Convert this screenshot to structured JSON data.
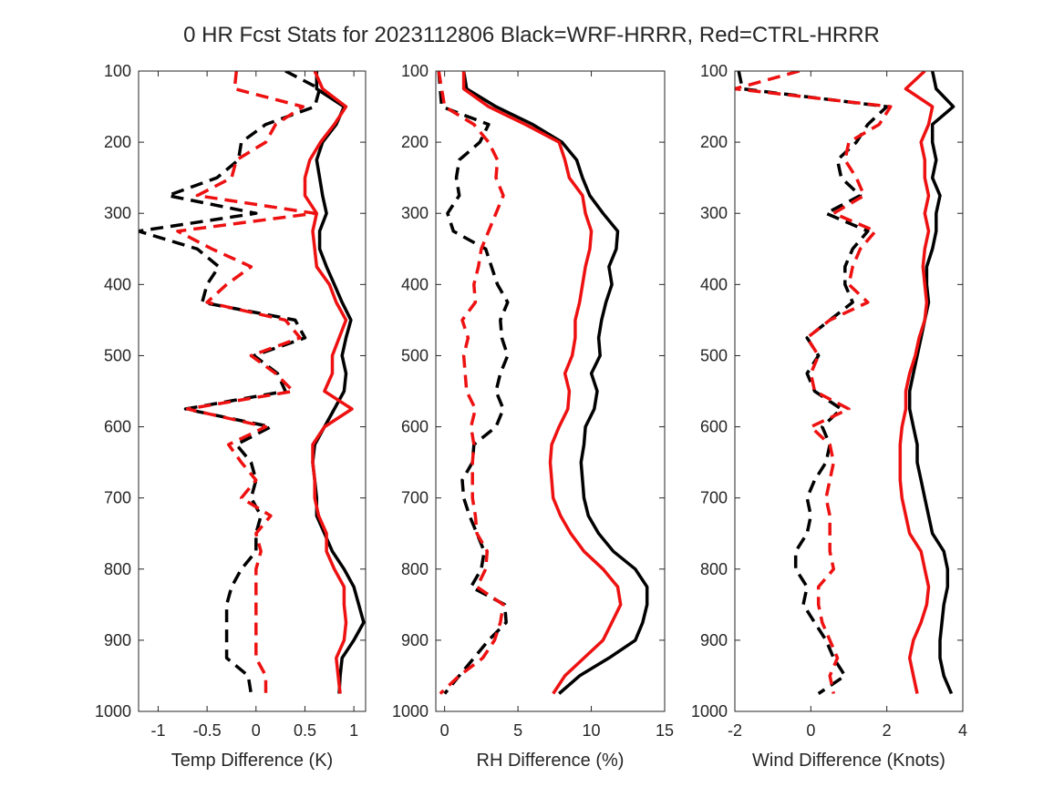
{
  "figure": {
    "title": "0 HR Fcst Stats for 2023112806 Black=WRF-HRRR, Red=CTRL-HRRR"
  },
  "colors": {
    "wrf": "#000000",
    "ctrl": "#ee1111",
    "axis": "#262626"
  },
  "chart_data": [
    {
      "type": "line",
      "xlabel": "Temp Difference (K)",
      "xlim": [
        -1.2,
        1.12
      ],
      "ylim": [
        100,
        1000
      ],
      "yreversed": true,
      "xticks": [
        -1,
        -0.5,
        0,
        0.5,
        1
      ],
      "xtick_labels": [
        "-1",
        "-0.5",
        "0",
        "0.5",
        "1"
      ],
      "yticks": [
        100,
        200,
        300,
        400,
        500,
        600,
        700,
        800,
        900,
        1000
      ],
      "ytick_labels": [
        "100",
        "200",
        "300",
        "400",
        "500",
        "600",
        "700",
        "800",
        "900",
        "1000"
      ],
      "pressure": [
        100,
        125,
        150,
        175,
        200,
        225,
        250,
        275,
        300,
        325,
        350,
        375,
        400,
        425,
        450,
        475,
        500,
        525,
        550,
        575,
        600,
        625,
        650,
        675,
        700,
        725,
        750,
        775,
        800,
        825,
        850,
        875,
        900,
        925,
        950,
        975
      ],
      "series": [
        {
          "key": "wrf_solid",
          "color": "#000000",
          "dash": "solid",
          "values": [
            0.62,
            0.62,
            0.9,
            0.82,
            0.68,
            0.62,
            0.65,
            0.68,
            0.72,
            0.65,
            0.65,
            0.72,
            0.8,
            0.88,
            0.97,
            0.92,
            0.88,
            0.92,
            0.9,
            0.8,
            0.7,
            0.6,
            0.58,
            0.6,
            0.62,
            0.62,
            0.7,
            0.78,
            0.9,
            1.0,
            1.05,
            1.1,
            1.0,
            0.88,
            0.86,
            0.85
          ]
        },
        {
          "key": "ctrl_solid",
          "color": "#ee1111",
          "dash": "solid",
          "values": [
            0.6,
            0.68,
            0.92,
            0.8,
            0.66,
            0.55,
            0.5,
            0.5,
            0.62,
            0.58,
            0.6,
            0.62,
            0.75,
            0.82,
            0.92,
            0.85,
            0.78,
            0.78,
            0.7,
            0.98,
            0.7,
            0.58,
            0.58,
            0.6,
            0.6,
            0.64,
            0.72,
            0.72,
            0.8,
            0.9,
            0.9,
            0.92,
            0.9,
            0.82,
            0.84,
            0.86
          ]
        },
        {
          "key": "wrf_dashed",
          "color": "#000000",
          "dash": "dashed",
          "values": [
            0.3,
            0.65,
            0.6,
            0.1,
            -0.15,
            -0.18,
            -0.4,
            -0.9,
            0.0,
            -1.2,
            -0.6,
            -0.38,
            -0.5,
            -0.55,
            0.4,
            0.5,
            -0.02,
            0.22,
            0.3,
            -0.72,
            0.15,
            -0.2,
            -0.05,
            0.0,
            -0.05,
            0.05,
            0.0,
            0.0,
            -0.15,
            -0.25,
            -0.3,
            -0.3,
            -0.3,
            -0.3,
            -0.08,
            -0.05
          ]
        },
        {
          "key": "ctrl_dashed",
          "color": "#ee1111",
          "dash": "dashed",
          "values": [
            -0.2,
            -0.22,
            0.48,
            0.2,
            0.1,
            -0.2,
            -0.25,
            -0.6,
            0.6,
            -0.8,
            -0.45,
            -0.05,
            -0.3,
            -0.5,
            0.3,
            0.45,
            -0.05,
            0.2,
            0.38,
            -0.7,
            0.1,
            -0.28,
            -0.15,
            0.0,
            -0.15,
            0.15,
            0.0,
            0.05,
            0.0,
            0.0,
            0.0,
            0.0,
            0.0,
            0.0,
            0.1,
            0.1
          ]
        }
      ]
    },
    {
      "type": "line",
      "xlabel": "RH Difference (%)",
      "xlim": [
        -0.6,
        15
      ],
      "ylim": [
        100,
        1000
      ],
      "yreversed": true,
      "xticks": [
        0,
        5,
        10,
        15
      ],
      "xtick_labels": [
        "0",
        "5",
        "10",
        "15"
      ],
      "yticks": [
        100,
        200,
        300,
        400,
        500,
        600,
        700,
        800,
        900,
        1000
      ],
      "ytick_labels": [
        "100",
        "200",
        "300",
        "400",
        "500",
        "600",
        "700",
        "800",
        "900",
        "1000"
      ],
      "pressure": [
        100,
        125,
        150,
        175,
        200,
        225,
        250,
        275,
        300,
        325,
        350,
        375,
        400,
        425,
        450,
        475,
        500,
        525,
        550,
        575,
        600,
        625,
        650,
        675,
        700,
        725,
        750,
        775,
        800,
        825,
        850,
        875,
        900,
        925,
        950,
        975
      ],
      "series": [
        {
          "key": "wrf_solid",
          "color": "#000000",
          "dash": "solid",
          "values": [
            1.3,
            1.5,
            3.5,
            6.0,
            8.0,
            9.0,
            9.4,
            9.9,
            10.8,
            11.8,
            11.7,
            11.2,
            11.4,
            11.0,
            10.7,
            10.5,
            10.6,
            10.0,
            10.4,
            10.2,
            9.6,
            9.5,
            9.3,
            9.4,
            9.5,
            9.8,
            10.5,
            11.5,
            13.0,
            13.8,
            13.8,
            13.5,
            13.0,
            11.2,
            9.2,
            7.8
          ]
        },
        {
          "key": "ctrl_solid",
          "color": "#ee1111",
          "dash": "solid",
          "values": [
            1.3,
            1.3,
            3.0,
            5.5,
            7.8,
            8.2,
            8.5,
            9.4,
            9.6,
            10.0,
            9.9,
            9.6,
            9.4,
            9.2,
            8.9,
            8.9,
            8.7,
            8.2,
            8.5,
            8.4,
            7.8,
            7.3,
            7.2,
            7.3,
            7.4,
            7.9,
            8.6,
            9.5,
            10.8,
            11.8,
            12.0,
            11.4,
            10.8,
            9.5,
            8.2,
            7.4
          ]
        },
        {
          "key": "wrf_dashed",
          "color": "#000000",
          "dash": "dashed",
          "values": [
            -0.4,
            -0.3,
            -0.2,
            3.0,
            2.4,
            1.0,
            0.8,
            1.0,
            0.2,
            0.6,
            2.8,
            3.2,
            3.6,
            4.3,
            3.8,
            3.9,
            4.3,
            3.8,
            3.5,
            4.0,
            3.5,
            2.0,
            1.9,
            1.2,
            1.3,
            1.7,
            2.2,
            2.7,
            2.5,
            1.8,
            4.1,
            4.2,
            3.0,
            2.0,
            1.0,
            0.0
          ]
        },
        {
          "key": "ctrl_dashed",
          "color": "#ee1111",
          "dash": "dashed",
          "values": [
            -0.4,
            -0.2,
            0.0,
            2.0,
            3.0,
            3.6,
            3.5,
            4.0,
            3.5,
            3.0,
            2.5,
            2.3,
            2.0,
            2.1,
            1.2,
            1.6,
            1.3,
            1.4,
            1.5,
            2.1,
            1.8,
            2.0,
            1.9,
            1.9,
            1.9,
            2.1,
            2.2,
            2.9,
            2.8,
            2.2,
            4.0,
            3.8,
            3.4,
            2.6,
            1.0,
            -0.3
          ]
        }
      ]
    },
    {
      "type": "line",
      "xlabel": "Wind Difference (Knots)",
      "xlim": [
        -2,
        4
      ],
      "ylim": [
        100,
        1000
      ],
      "yreversed": true,
      "xticks": [
        -2,
        0,
        2,
        4
      ],
      "xtick_labels": [
        "-2",
        "0",
        "2",
        "4"
      ],
      "yticks": [
        100,
        200,
        300,
        400,
        500,
        600,
        700,
        800,
        900,
        1000
      ],
      "ytick_labels": [
        "100",
        "200",
        "300",
        "400",
        "500",
        "600",
        "700",
        "800",
        "900",
        "1000"
      ],
      "pressure": [
        100,
        125,
        150,
        175,
        200,
        225,
        250,
        275,
        300,
        325,
        350,
        375,
        400,
        425,
        450,
        475,
        500,
        525,
        550,
        575,
        600,
        625,
        650,
        675,
        700,
        725,
        750,
        775,
        800,
        825,
        850,
        875,
        900,
        925,
        950,
        975
      ],
      "series": [
        {
          "key": "wrf_solid",
          "color": "#000000",
          "dash": "solid",
          "values": [
            3.2,
            3.3,
            3.75,
            3.2,
            3.2,
            3.3,
            3.2,
            3.4,
            3.3,
            3.3,
            3.2,
            3.05,
            3.05,
            3.1,
            3.0,
            2.9,
            2.8,
            2.7,
            2.6,
            2.6,
            2.7,
            2.8,
            2.8,
            2.9,
            3.0,
            3.1,
            3.2,
            3.5,
            3.6,
            3.6,
            3.5,
            3.45,
            3.4,
            3.4,
            3.5,
            3.7
          ]
        },
        {
          "key": "ctrl_solid",
          "color": "#ee1111",
          "dash": "solid",
          "values": [
            3.0,
            2.5,
            3.2,
            3.1,
            2.9,
            3.0,
            3.0,
            3.1,
            3.0,
            3.1,
            3.0,
            2.95,
            3.0,
            3.05,
            3.0,
            2.85,
            2.75,
            2.6,
            2.5,
            2.5,
            2.4,
            2.35,
            2.35,
            2.35,
            2.4,
            2.5,
            2.6,
            2.9,
            3.0,
            3.1,
            3.05,
            2.9,
            2.7,
            2.6,
            2.7,
            2.8
          ]
        },
        {
          "key": "wrf_dashed",
          "color": "#000000",
          "dash": "dashed",
          "values": [
            -1.9,
            -1.8,
            2.0,
            1.5,
            1.2,
            0.7,
            0.8,
            1.3,
            0.4,
            1.5,
            1.1,
            0.9,
            0.9,
            1.1,
            0.5,
            -0.1,
            0.2,
            -0.1,
            0.1,
            0.8,
            0.3,
            0.5,
            0.4,
            0.1,
            -0.1,
            0.0,
            -0.1,
            -0.4,
            -0.4,
            -0.1,
            -0.2,
            0.1,
            0.4,
            0.6,
            0.9,
            0.2
          ]
        },
        {
          "key": "ctrl_dashed",
          "color": "#ee1111",
          "dash": "dashed",
          "values": [
            -0.3,
            -2.0,
            2.1,
            1.8,
            1.0,
            0.9,
            1.2,
            1.4,
            0.6,
            1.7,
            1.3,
            1.1,
            1.0,
            1.5,
            0.5,
            -0.1,
            0.2,
            0.0,
            0.1,
            1.0,
            0.0,
            0.5,
            0.6,
            0.5,
            0.4,
            0.5,
            0.5,
            0.5,
            0.6,
            0.2,
            0.2,
            0.3,
            0.5,
            0.7,
            0.5,
            0.6
          ]
        }
      ]
    }
  ]
}
